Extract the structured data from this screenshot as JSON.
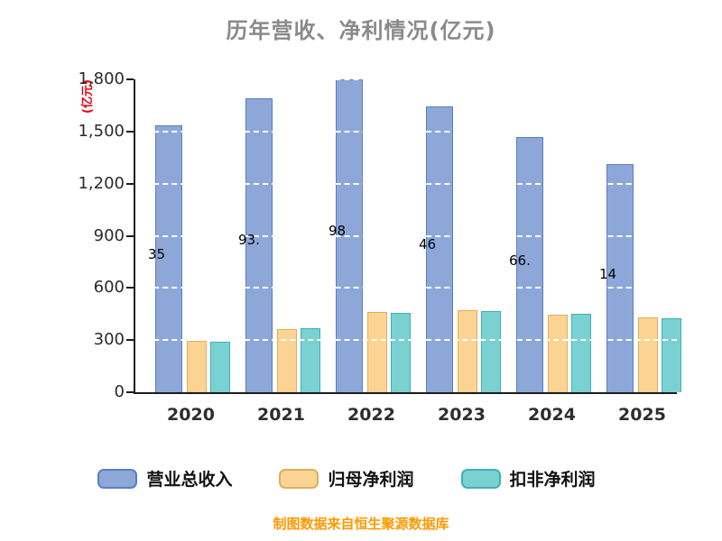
{
  "title": "历年营收、净利情况(亿元)",
  "y_axis_unit": "(亿元)",
  "footer": "制图数据来自恒生聚源数据库",
  "colors": {
    "title_text": "#8a8a8a",
    "y_unit_text": "#e60012",
    "axis_line": "#1c1c1c",
    "footer_text": "#ff9900",
    "gridline": "#ffffff"
  },
  "chart_data": {
    "type": "bar",
    "title": "历年营收、净利情况(亿元)",
    "ylabel": "(亿元)",
    "xlabel": "",
    "ylim": [
      0,
      1800
    ],
    "ytick_labels": [
      "0",
      "300",
      "600",
      "900",
      "1,200",
      "1,500",
      "1,800"
    ],
    "ytick_values": [
      0,
      300,
      600,
      900,
      1200,
      1500,
      1800
    ],
    "grid": "dashed-white-horizontal",
    "legend_position": "bottom",
    "categories": [
      "2020",
      "2021",
      "2022",
      "2023",
      "2024",
      "2025"
    ],
    "series": [
      {
        "name": "营业总收入",
        "semantic": "total-revenue",
        "color": "#8da8d8",
        "border_color": "#5b7ec1",
        "values": [
          1535,
          1693,
          1798,
          1646,
          1466,
          1314
        ],
        "visible_value_labels": [
          "35",
          "93.",
          "98",
          "46",
          "66.",
          "14"
        ]
      },
      {
        "name": "归母净利润",
        "semantic": "net-profit-attributable",
        "color": "#fbd494",
        "border_color": "#dfae5a",
        "values": [
          295,
          365,
          460,
          470,
          445,
          430
        ]
      },
      {
        "name": "扣非净利润",
        "semantic": "non-recurring-net-profit",
        "color": "#7ad1d1",
        "border_color": "#3fb0b6",
        "values": [
          293,
          366,
          458,
          468,
          452,
          428
        ]
      }
    ]
  }
}
